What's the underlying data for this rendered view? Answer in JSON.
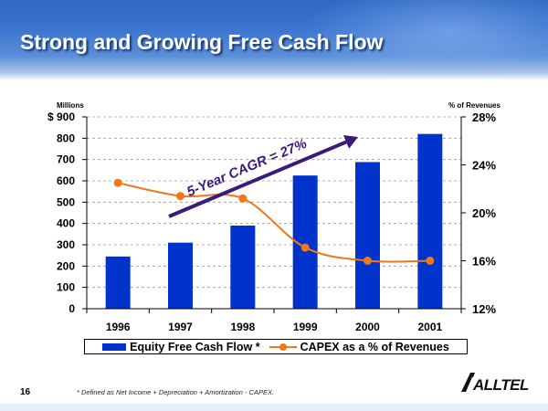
{
  "slide": {
    "title": "Strong and Growing Free Cash Flow",
    "number": "16",
    "footnote": "* Defined as Net Income + Depreciation + Amortization - CAPEX.",
    "logo_text": "ALLTEL"
  },
  "chart_data": {
    "type": "bar+line",
    "categories": [
      "1996",
      "1997",
      "1998",
      "1999",
      "2000",
      "2001"
    ],
    "series": [
      {
        "name": "Equity Free Cash Flow *",
        "type": "bar",
        "axis": "left",
        "color": "#0033cc",
        "values": [
          245,
          310,
          390,
          625,
          688,
          820
        ]
      },
      {
        "name": "CAPEX as a % of Revenues",
        "type": "line",
        "axis": "right",
        "color": "#f07818",
        "values": [
          22.5,
          21.4,
          21.2,
          17.1,
          16.0,
          16.0
        ]
      }
    ],
    "y_left": {
      "label": "Millions",
      "range": [
        0,
        900
      ],
      "ticks": [
        "$ 900",
        "800",
        "700",
        "600",
        "500",
        "400",
        "300",
        "200",
        "100",
        "0"
      ],
      "tick_values": [
        900,
        800,
        700,
        600,
        500,
        400,
        300,
        200,
        100,
        0
      ]
    },
    "y_right": {
      "label": "% of Revenues",
      "range": [
        12,
        28
      ],
      "ticks": [
        "28%",
        "24%",
        "20%",
        "16%",
        "12%"
      ],
      "tick_values": [
        28,
        24,
        20,
        16,
        12
      ]
    },
    "gridlines": "dashed",
    "annotation": {
      "text": "5-Year CAGR = 27%",
      "color": "#3a1a7a"
    },
    "legend": [
      "Equity Free Cash Flow *",
      "CAPEX as a % of Revenues"
    ]
  }
}
